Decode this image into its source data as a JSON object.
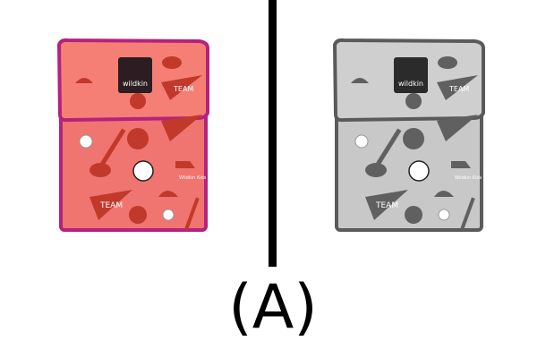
{
  "caption": "(A)",
  "bags": [
    {
      "variant": "color",
      "logo_text": "wildkin",
      "small_text": "Wildkin Kids",
      "pennant_text": "TEAM",
      "colors": {
        "body": "#f0746f",
        "flap": "#f57f75",
        "trim": "#b5227d",
        "accent": "#c0392b"
      }
    },
    {
      "variant": "grayscale",
      "logo_text": "wildkin",
      "small_text": "Wildkin Kids",
      "pennant_text": "TEAM",
      "colors": {
        "body": "#c8c8c8",
        "flap": "#cfcfcf",
        "trim": "#5a5a5a",
        "accent": "#606060"
      }
    }
  ]
}
